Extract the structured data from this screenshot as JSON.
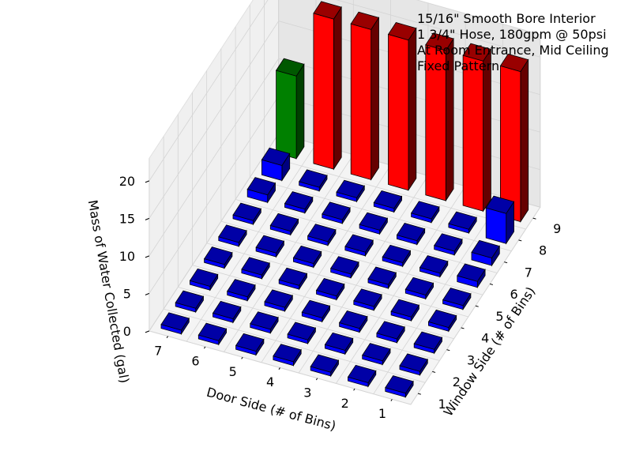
{
  "chart_data": {
    "type": "bar3d",
    "annotation_lines": [
      "15/16\" Smooth Bore Interior",
      "1 3/4\" Hose, 180gpm @ 50psi",
      "At Room Entrance, Mid Ceiling",
      "Fixed Pattern"
    ],
    "x_axis": {
      "label": "Door Side (# of Bins)",
      "ticks": [
        1,
        2,
        3,
        4,
        5,
        6,
        7
      ]
    },
    "y_axis": {
      "label": "Window Side (# of Bins)",
      "ticks": [
        1,
        2,
        3,
        4,
        5,
        6,
        7,
        8,
        9
      ]
    },
    "z_axis": {
      "label": "Mass of Water Collected (gal)",
      "ticks": [
        0,
        5,
        10,
        15,
        20
      ],
      "range": [
        0,
        20
      ]
    },
    "grid": true,
    "colors": {
      "red": "#ff0000",
      "green": "#008000",
      "blue": "#0000ff"
    },
    "bars_default": {
      "value": 0.5,
      "color": "blue"
    },
    "bars_override": [
      {
        "door": 1,
        "window": 9,
        "value": 20,
        "color": "red"
      },
      {
        "door": 2,
        "window": 9,
        "value": 20,
        "color": "red"
      },
      {
        "door": 3,
        "window": 9,
        "value": 20,
        "color": "red"
      },
      {
        "door": 4,
        "window": 9,
        "value": 20,
        "color": "red"
      },
      {
        "door": 5,
        "window": 9,
        "value": 20,
        "color": "red"
      },
      {
        "door": 6,
        "window": 9,
        "value": 20,
        "color": "red"
      },
      {
        "door": 7,
        "window": 9,
        "value": 11,
        "color": "green"
      },
      {
        "door": 7,
        "window": 8,
        "value": 2,
        "color": "blue"
      },
      {
        "door": 1,
        "window": 8,
        "value": 4,
        "color": "blue"
      },
      {
        "door": 1,
        "window": 7,
        "value": 1,
        "color": "blue"
      },
      {
        "door": 1,
        "window": 6,
        "value": 0.8,
        "color": "blue"
      },
      {
        "door": 7,
        "window": 7,
        "value": 1,
        "color": "blue"
      }
    ]
  }
}
